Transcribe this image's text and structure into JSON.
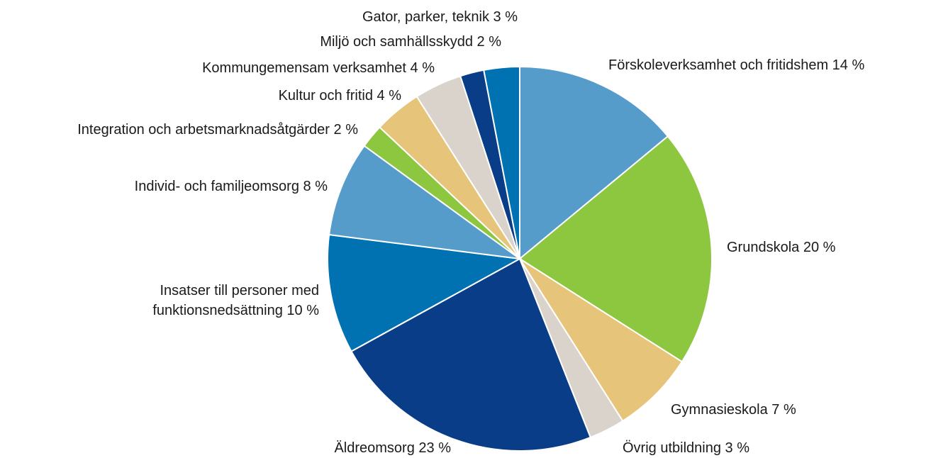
{
  "chart_data": {
    "type": "pie",
    "categories": [
      "Förskoleverksamhet och fritidshem",
      "Grundskola",
      "Gymnasieskola",
      "Övrig utbildning",
      "Äldreomsorg",
      "Insatser till personer med funktionsnedsättning",
      "Individ- och familjeomsorg",
      "Integration och arbetsmarknadsåtgärder",
      "Kultur och fritid",
      "Kommungemensam verksamhet",
      "Miljö och samhällsskydd",
      "Gator, parker, teknik"
    ],
    "values": [
      14,
      20,
      7,
      3,
      23,
      10,
      8,
      2,
      4,
      4,
      2,
      3
    ],
    "value_labels": [
      "14 %",
      "20 %",
      "7 %",
      "3 %",
      "23 %",
      "10 %",
      "8 %",
      "2 %",
      "4 %",
      "4 %",
      "2 %",
      "3 %"
    ],
    "colors": [
      "#569ccb",
      "#8dc63f",
      "#e6c47a",
      "#d9d3cc",
      "#0a3d87",
      "#0072b2",
      "#569ccb",
      "#8dc63f",
      "#e6c47a",
      "#d9d3cc",
      "#0a3d87",
      "#0072b2"
    ]
  }
}
